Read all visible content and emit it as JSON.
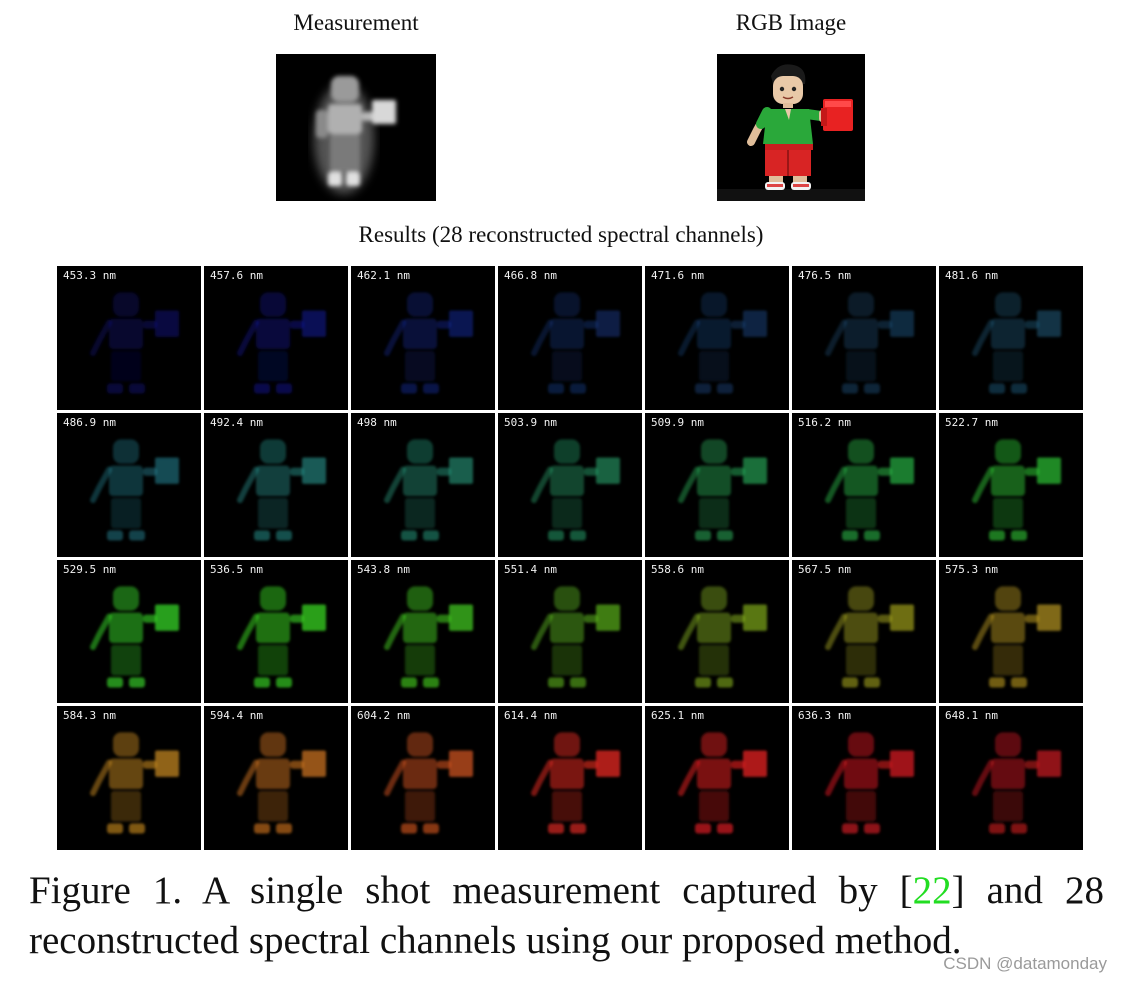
{
  "header": {
    "measurement_label": "Measurement",
    "rgb_label": "RGB Image",
    "results_label": "Results (28 reconstructed spectral channels)"
  },
  "channels": [
    {
      "label": "453.3 nm",
      "color": "#1a1ad8",
      "level": 0.35
    },
    {
      "label": "457.6 nm",
      "color": "#1a22dd",
      "level": 0.45
    },
    {
      "label": "462.1 nm",
      "color": "#1d3ad4",
      "level": 0.45
    },
    {
      "label": "466.8 nm",
      "color": "#2658c8",
      "level": 0.4
    },
    {
      "label": "471.6 nm",
      "color": "#2a6ac0",
      "level": 0.4
    },
    {
      "label": "476.5 nm",
      "color": "#2d7ab8",
      "level": 0.4
    },
    {
      "label": "481.6 nm",
      "color": "#2e86b4",
      "level": 0.45
    },
    {
      "label": "486.9 nm",
      "color": "#2fa0b4",
      "level": 0.55
    },
    {
      "label": "492.4 nm",
      "color": "#2fb0a8",
      "level": 0.6
    },
    {
      "label": "498 nm",
      "color": "#2fb896",
      "level": 0.6
    },
    {
      "label": "503.9 nm",
      "color": "#2fc080",
      "level": 0.6
    },
    {
      "label": "509.9 nm",
      "color": "#2fc868",
      "level": 0.65
    },
    {
      "label": "516.2 nm",
      "color": "#2fd050",
      "level": 0.7
    },
    {
      "label": "522.7 nm",
      "color": "#32d63a",
      "level": 0.75
    },
    {
      "label": "529.5 nm",
      "color": "#38dc28",
      "level": 0.85
    },
    {
      "label": "536.5 nm",
      "color": "#3cdc24",
      "level": 0.85
    },
    {
      "label": "543.8 nm",
      "color": "#48d822",
      "level": 0.8
    },
    {
      "label": "551.4 nm",
      "color": "#6ad022",
      "level": 0.7
    },
    {
      "label": "558.6 nm",
      "color": "#96c822",
      "level": 0.7
    },
    {
      "label": "567.5 nm",
      "color": "#b8b822",
      "level": 0.7
    },
    {
      "label": "575.3 nm",
      "color": "#c8a422",
      "level": 0.75
    },
    {
      "label": "584.3 nm",
      "color": "#d49222",
      "level": 0.8
    },
    {
      "label": "594.4 nm",
      "color": "#dc7c22",
      "level": 0.8
    },
    {
      "label": "604.2 nm",
      "color": "#e05a22",
      "level": 0.8
    },
    {
      "label": "614.4 nm",
      "color": "#e22a22",
      "level": 0.9
    },
    {
      "label": "625.1 nm",
      "color": "#e21e22",
      "level": 0.9
    },
    {
      "label": "636.3 nm",
      "color": "#dc1c22",
      "level": 0.85
    },
    {
      "label": "648.1 nm",
      "color": "#d41c22",
      "level": 0.8
    }
  ],
  "caption": {
    "prefix": "Figure 1. A single shot measurement captured by [",
    "citation": "22",
    "suffix": "] and 28 reconstructed spectral channels using our proposed method."
  },
  "watermark": "CSDN @datamonday"
}
